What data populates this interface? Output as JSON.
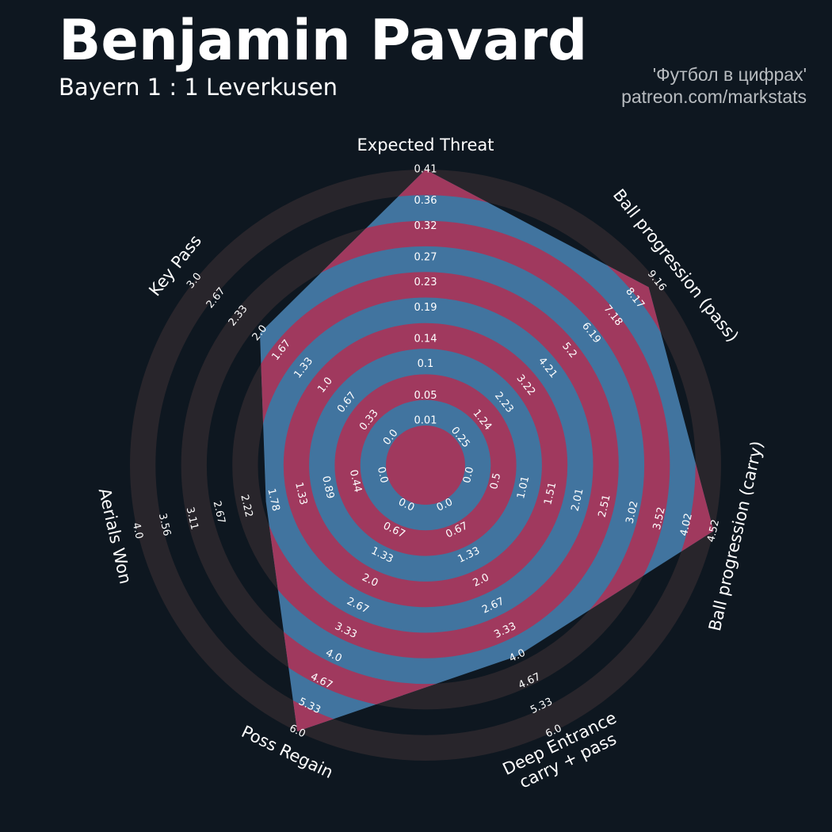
{
  "chart_data": {
    "type": "radar",
    "title": "Benjamin Pavard",
    "subtitle": "Bayern 1 : 1 Leverkusen",
    "credits": [
      "'Футбол в цифрах'",
      "patreon.com/markstats"
    ],
    "color": "#41749f",
    "ring_color": "#a0395e",
    "ring_outer_color": "#28252b",
    "params": [
      "Expected Threat",
      "Ball progression (pass)",
      "Ball progression (carry)",
      [
        "Deep Entrance",
        "carry + pass"
      ],
      "Poss Regain",
      "Aerials Won",
      "Key Pass"
    ],
    "values": [
      0.41,
      8.8,
      4.52,
      4.0,
      6.0,
      1.9,
      2.0
    ],
    "axes": [
      {
        "lim": [
          0.01,
          0.41
        ],
        "ticks": [
          0.01,
          0.05,
          0.1,
          0.14,
          0.19,
          0.23,
          0.27,
          0.32,
          0.36,
          0.41
        ]
      },
      {
        "lim": [
          0.25,
          9.16
        ],
        "ticks": [
          0.25,
          1.24,
          2.23,
          3.22,
          4.21,
          5.2,
          6.19,
          7.18,
          8.17,
          9.16
        ]
      },
      {
        "lim": [
          0,
          4.52
        ],
        "ticks": [
          {
            "value": 0,
            "label": "0.0"
          },
          0.5,
          1.01,
          1.51,
          2.01,
          2.51,
          3.02,
          3.52,
          4.02,
          4.52
        ]
      },
      {
        "lim": [
          0,
          6
        ],
        "ticks": [
          {
            "value": 0,
            "label": "0.0"
          },
          0.67,
          1.33,
          {
            "value": 2,
            "label": "2.0"
          },
          2.67,
          3.33,
          {
            "value": 4,
            "label": "4.0"
          },
          4.67,
          5.33,
          {
            "value": 6,
            "label": "6.0"
          }
        ]
      },
      {
        "lim": [
          0,
          6
        ],
        "ticks": [
          {
            "value": 0,
            "label": "0.0"
          },
          0.67,
          1.33,
          {
            "value": 2,
            "label": "2.0"
          },
          2.67,
          3.33,
          {
            "value": 4,
            "label": "4.0"
          },
          4.67,
          5.33,
          {
            "value": 6,
            "label": "6.0"
          }
        ]
      },
      {
        "lim": [
          0,
          4
        ],
        "ticks": [
          {
            "value": 0,
            "label": "0.0"
          },
          0.44,
          0.89,
          1.33,
          1.78,
          2.22,
          2.67,
          3.11,
          3.56,
          {
            "value": 4,
            "label": "4.0"
          }
        ]
      },
      {
        "lim": [
          0,
          3
        ],
        "ticks": [
          {
            "value": 0,
            "label": "0.0"
          },
          0.33,
          0.67,
          {
            "value": 1,
            "label": "1.0"
          },
          1.33,
          1.67,
          {
            "value": 2,
            "label": "2.0"
          },
          2.33,
          2.67,
          {
            "value": 3,
            "label": "3.0"
          }
        ]
      }
    ]
  }
}
